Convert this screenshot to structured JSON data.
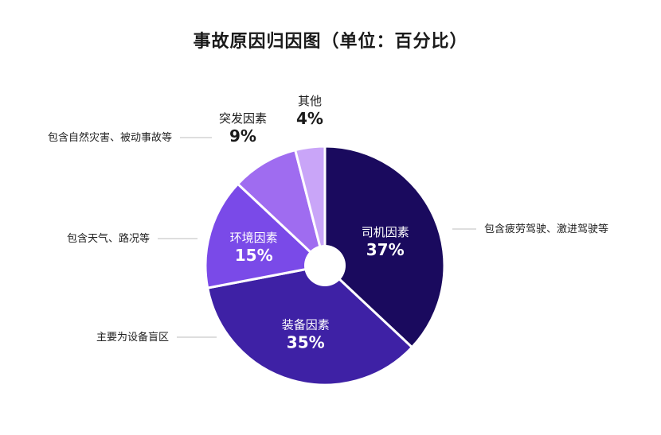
{
  "chart_data": {
    "type": "pie",
    "title": "事故原因归因图（单位：百分比）",
    "categories": [
      "司机因素",
      "装备因素",
      "环境因素",
      "突发因素",
      "其他"
    ],
    "values": [
      37,
      35,
      15,
      9,
      4
    ],
    "value_labels": [
      "37%",
      "35%",
      "15%",
      "9%",
      "4%"
    ],
    "colors": [
      "#1a0a5e",
      "#3e21a5",
      "#7a4ae8",
      "#9f6cf0",
      "#c9a5f8"
    ],
    "annotations": [
      "包含疲劳驾驶、激进驾驶等",
      "主要为设备盲区",
      "包含天气、路况等",
      "包含自然灾害、被动事故等",
      ""
    ],
    "donut_hole": true,
    "legend": "none"
  }
}
